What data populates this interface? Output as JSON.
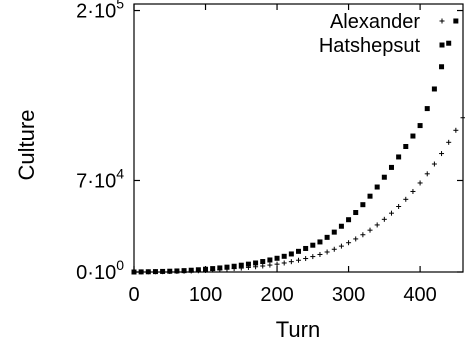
{
  "chart_data": {
    "type": "scatter",
    "xlabel": "Turn",
    "ylabel": "Culture",
    "xlim": [
      0,
      460
    ],
    "ylim": [
      0,
      205000
    ],
    "xticks": [
      {
        "value": 0,
        "label": "0"
      },
      {
        "value": 100,
        "label": "100"
      },
      {
        "value": 200,
        "label": "200"
      },
      {
        "value": 300,
        "label": "300"
      },
      {
        "value": 400,
        "label": "400"
      }
    ],
    "yticks": [
      {
        "value": 0,
        "base": "0·10",
        "exp": "0"
      },
      {
        "value": 70000,
        "base": "7·10",
        "exp": "4"
      },
      {
        "value": 200000,
        "base": "2·10",
        "exp": "5"
      }
    ],
    "legend_position": "top-right",
    "series": [
      {
        "name": "Alexander",
        "marker": "plus",
        "color": "#000000",
        "x": [
          0,
          10,
          20,
          30,
          40,
          50,
          60,
          70,
          80,
          90,
          100,
          110,
          120,
          130,
          140,
          150,
          160,
          170,
          180,
          190,
          200,
          210,
          220,
          230,
          240,
          250,
          260,
          270,
          280,
          290,
          300,
          310,
          320,
          330,
          340,
          350,
          360,
          370,
          380,
          390,
          400,
          410,
          420,
          430,
          440,
          450,
          460
        ],
        "y": [
          0,
          50,
          100,
          180,
          260,
          360,
          470,
          600,
          760,
          950,
          1200,
          1500,
          1800,
          2200,
          2600,
          3000,
          3500,
          4000,
          4600,
          5300,
          6000,
          6900,
          7900,
          9000,
          10300,
          11800,
          13400,
          15300,
          17400,
          19800,
          22400,
          25300,
          28500,
          32000,
          36000,
          40300,
          45000,
          50100,
          55600,
          61600,
          68100,
          75100,
          82600,
          90600,
          99200,
          108400,
          118000
        ]
      },
      {
        "name": "Hatshepsut",
        "marker": "square",
        "color": "#000000",
        "x": [
          0,
          10,
          20,
          30,
          40,
          50,
          60,
          70,
          80,
          90,
          100,
          110,
          120,
          130,
          140,
          150,
          160,
          170,
          180,
          190,
          200,
          210,
          220,
          230,
          240,
          250,
          260,
          270,
          280,
          290,
          300,
          310,
          320,
          330,
          340,
          350,
          360,
          370,
          380,
          390,
          400,
          410,
          420,
          430,
          440,
          450,
          460
        ],
        "y": [
          0,
          80,
          180,
          300,
          440,
          600,
          800,
          1050,
          1350,
          1700,
          2100,
          2600,
          3100,
          3700,
          4400,
          5200,
          6000,
          6900,
          8000,
          9200,
          10500,
          12000,
          13800,
          15800,
          18000,
          20500,
          23000,
          26500,
          30500,
          35000,
          40000,
          45500,
          51500,
          58000,
          65000,
          72500,
          80000,
          88000,
          96000,
          104000,
          112000,
          125000,
          140000,
          157000,
          175000,
          192000,
          208000
        ]
      }
    ]
  }
}
